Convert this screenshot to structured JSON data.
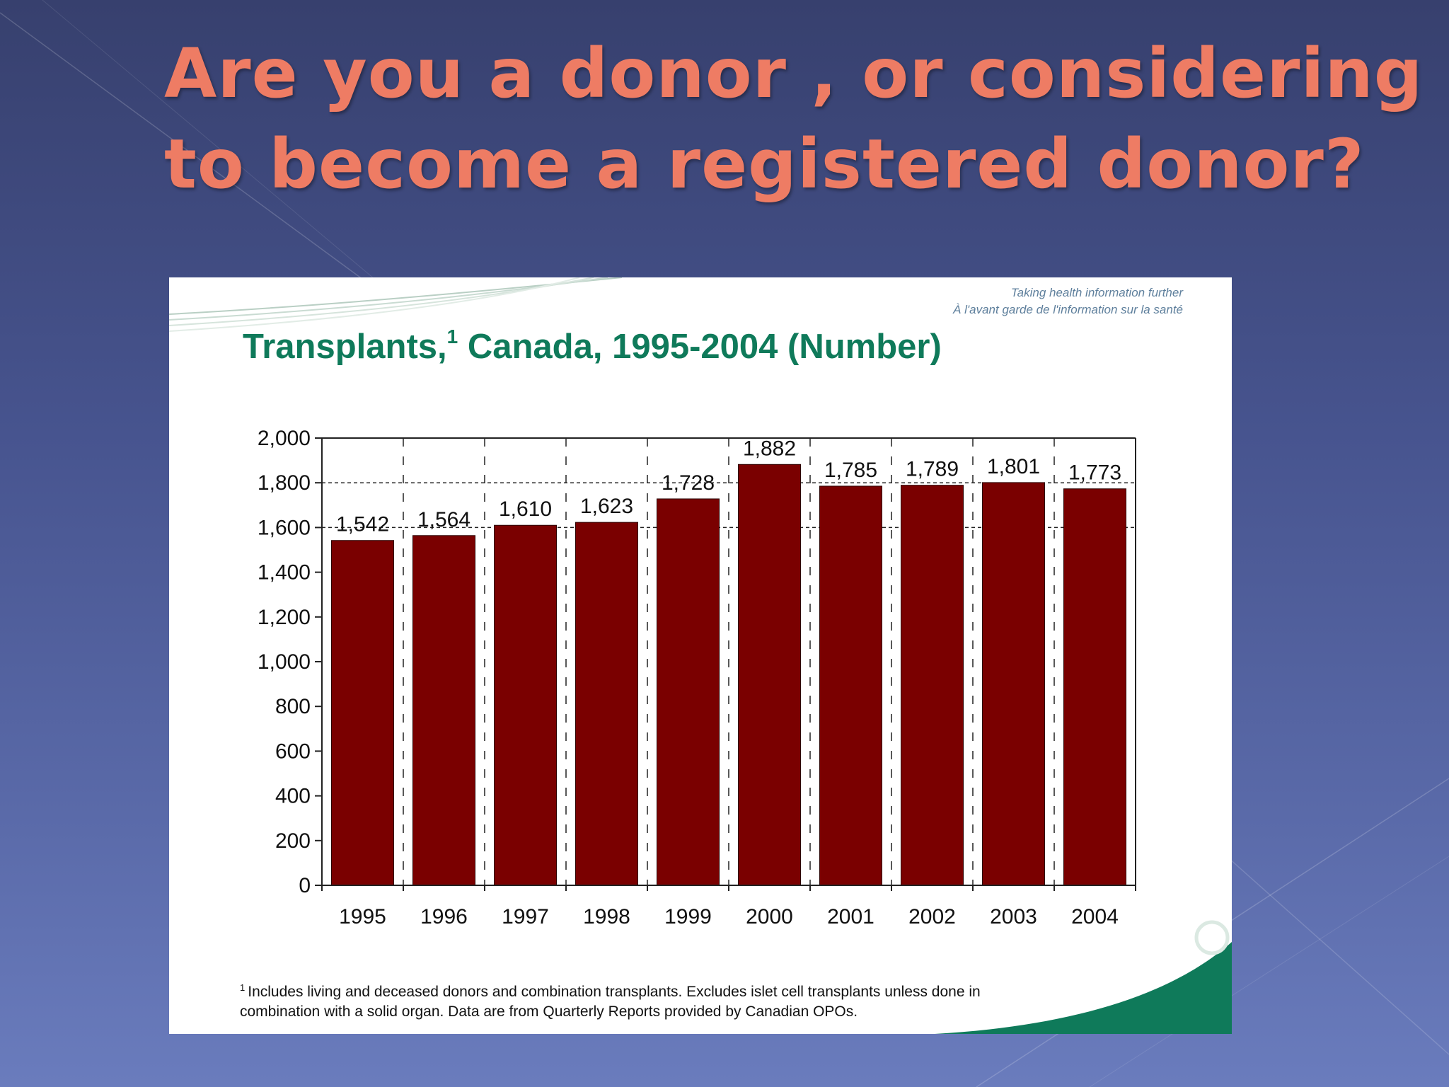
{
  "slide": {
    "title_line1": "Are you a donor , or considering",
    "title_line2": "to become a registered donor?"
  },
  "card": {
    "tagline_line1": "Taking health information further",
    "tagline_line2": "À l'avant garde de l'information sur la santé",
    "footnote_marker": "1",
    "footnote_line1": "Includes living and deceased donors and combination transplants. Excludes islet cell transplants unless done in",
    "footnote_line2": "combination with a solid organ. Data are from Quarterly Reports provided by Canadian OPOs."
  },
  "colors": {
    "background_top": "#37406e",
    "background_bottom": "#6a7cbd",
    "title": "#ee7c64",
    "chart_title": "#0f7a5a",
    "bar": "#7a0000",
    "logo_green": "#0f7a5a"
  },
  "chart_data": {
    "type": "bar",
    "title": "Transplants,",
    "title_superscript": "1",
    "title_suffix": "Canada, 1995-2004 (Number)",
    "categories": [
      "1995",
      "1996",
      "1997",
      "1998",
      "1999",
      "2000",
      "2001",
      "2002",
      "2003",
      "2004"
    ],
    "values": [
      1542,
      1564,
      1610,
      1623,
      1728,
      1882,
      1785,
      1789,
      1801,
      1773
    ],
    "value_labels": [
      "1,542",
      "1,564",
      "1,610",
      "1,623",
      "1,728",
      "1,882",
      "1,785",
      "1,789",
      "1,801",
      "1,773"
    ],
    "yticks": [
      0,
      200,
      400,
      600,
      800,
      1000,
      1200,
      1400,
      1600,
      1800,
      2000
    ],
    "ytick_labels": [
      "0",
      "200",
      "400",
      "600",
      "800",
      "1,000",
      "1,200",
      "1,400",
      "1,600",
      "1,800",
      "2,000"
    ],
    "ylim": [
      0,
      2000
    ],
    "xlabel": "",
    "ylabel": "",
    "grid": "dashed horizontal at 1,600 and 1,800; dashed vertical between bars",
    "legend": "none"
  }
}
